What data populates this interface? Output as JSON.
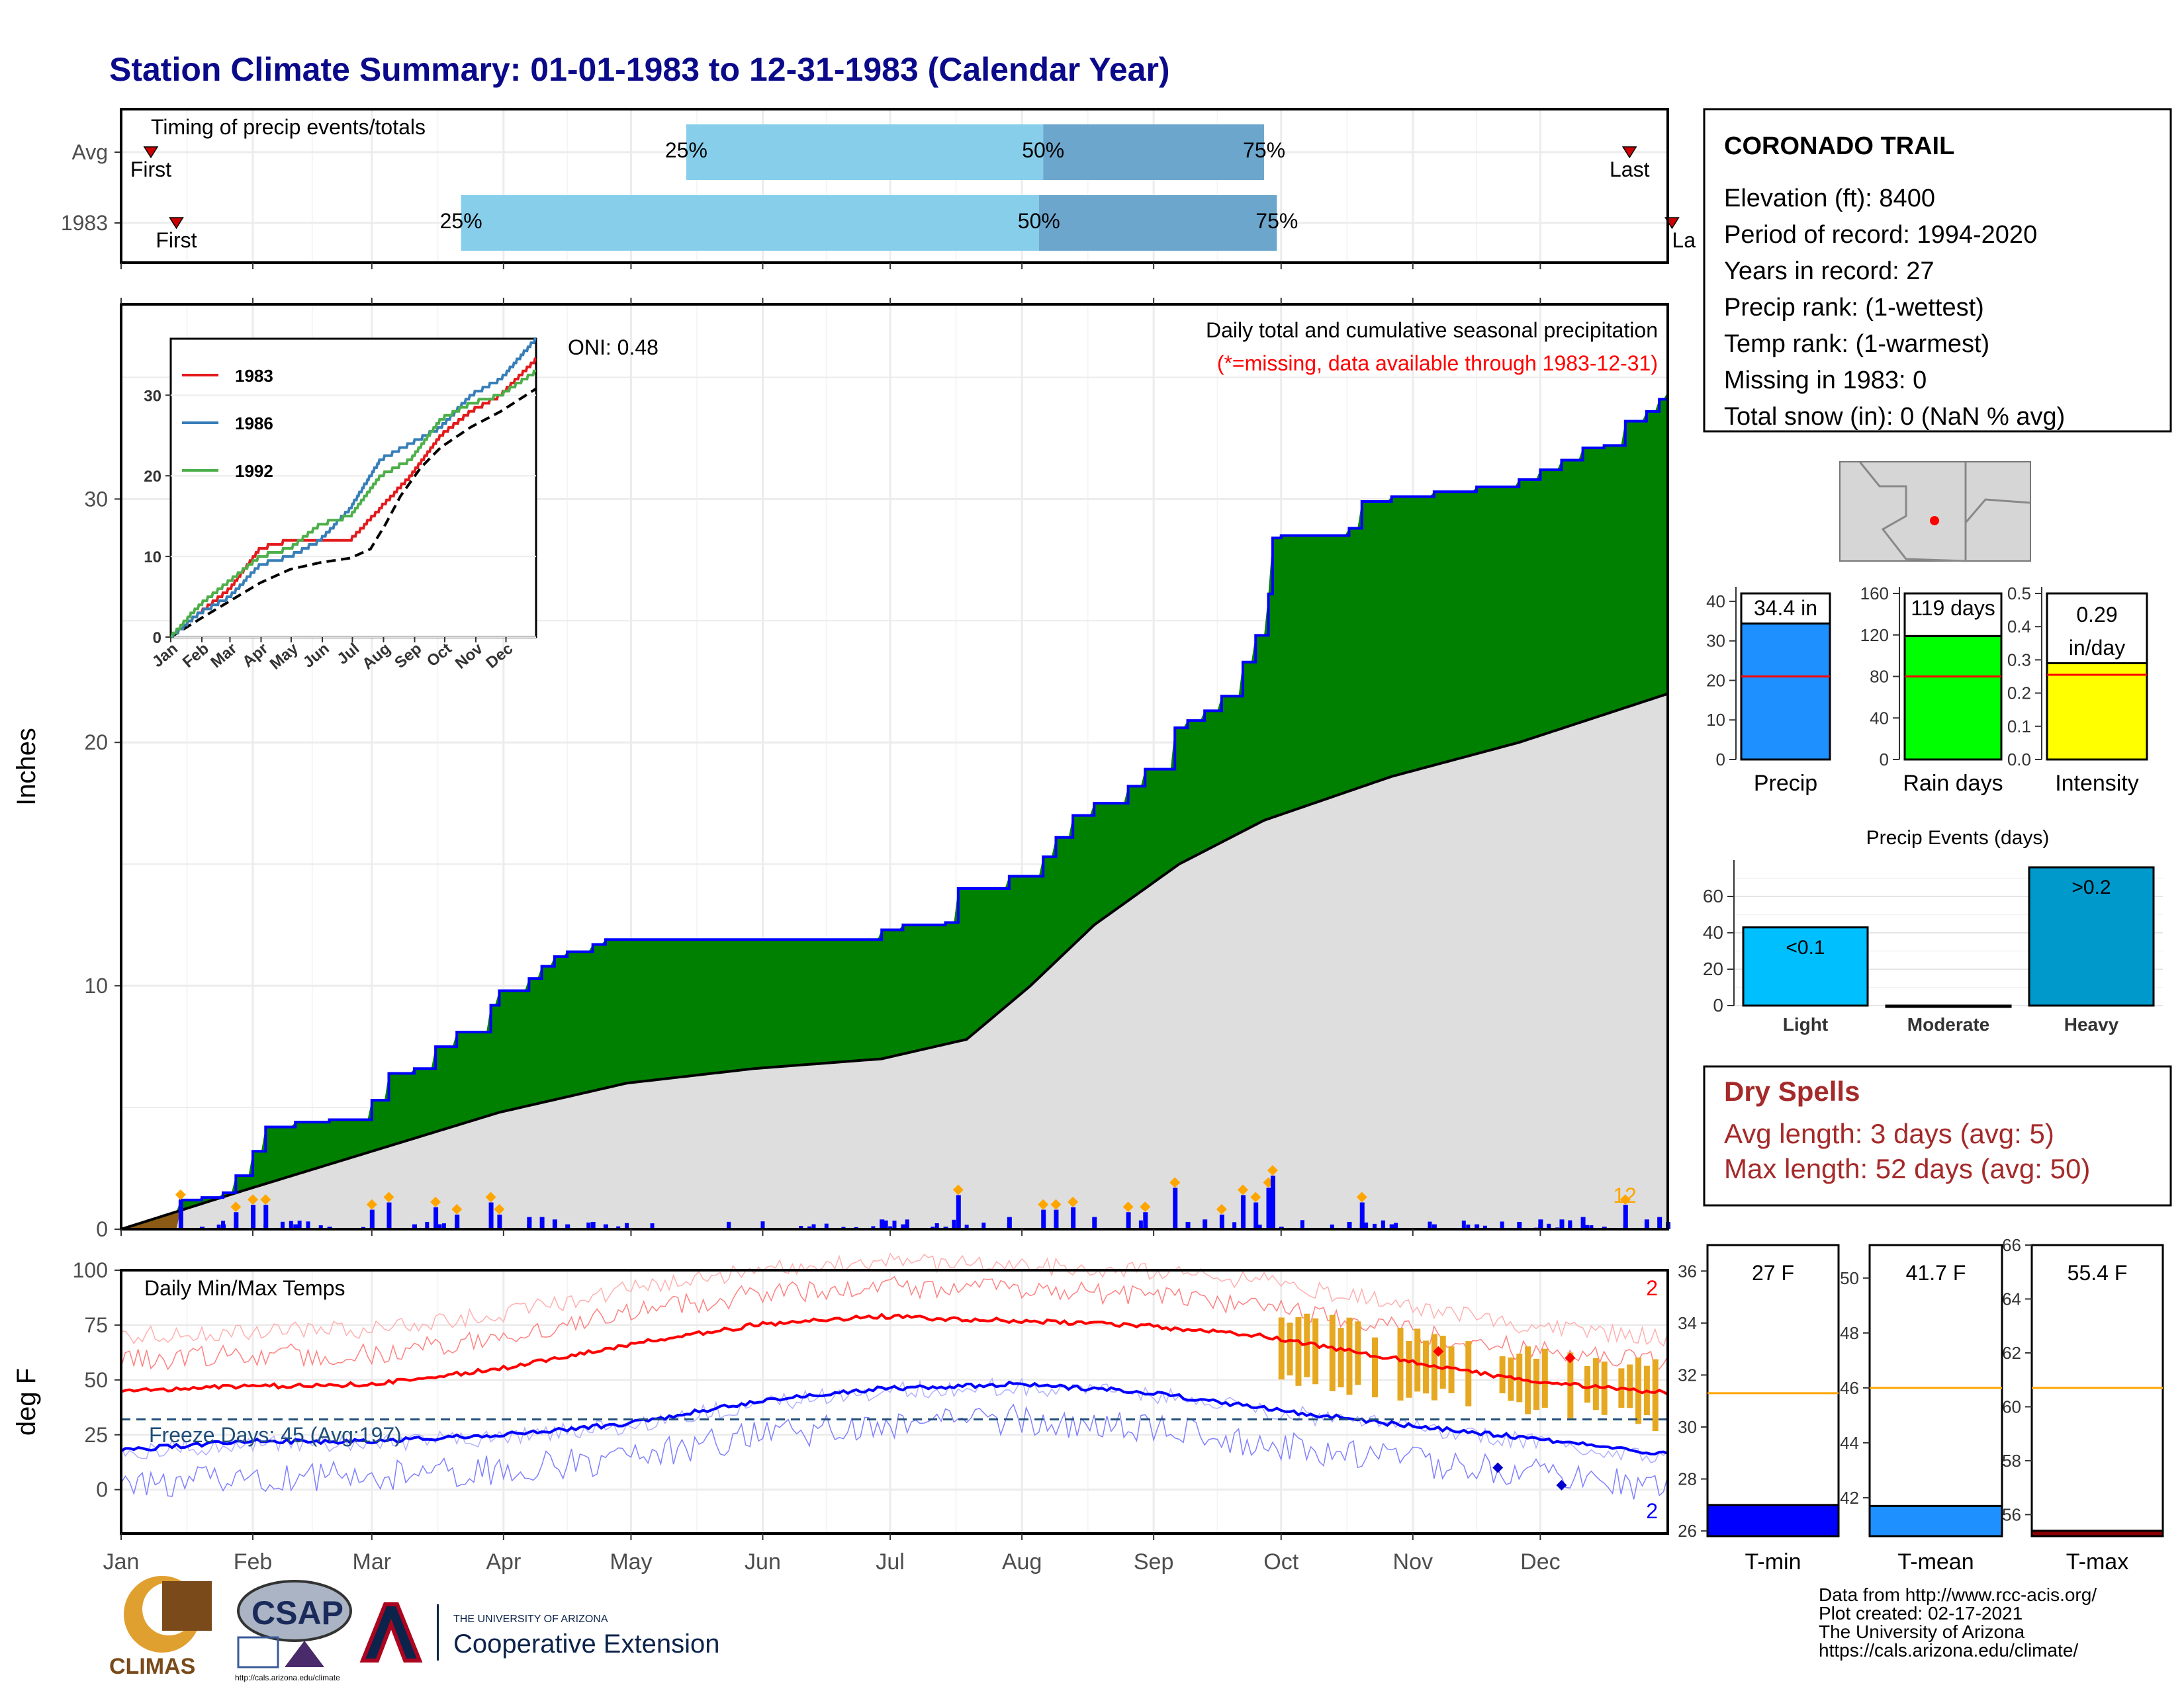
{
  "title": "Station Climate Summary: 01-01-1983 to 12-31-1983 (Calendar Year)",
  "months": [
    "Jan",
    "Feb",
    "Mar",
    "Apr",
    "May",
    "Jun",
    "Jul",
    "Aug",
    "Sep",
    "Oct",
    "Nov",
    "Dec"
  ],
  "timing": {
    "title": "Timing of precip events/totals",
    "rows": [
      {
        "label": "Avg",
        "first_day": 8,
        "last_day": 356,
        "p25_day": 134,
        "p50_day": 218,
        "p75_day": 270,
        "first_label": "First",
        "last_label": "Last"
      },
      {
        "label": "1983",
        "first_day": 14,
        "last_day": 366,
        "p25_day": 81,
        "p50_day": 217,
        "p75_day": 273,
        "first_label": "First",
        "last_label": "La"
      }
    ],
    "pct_labels": [
      "25%",
      "50%",
      "75%"
    ]
  },
  "precip": {
    "ylabel": "Inches",
    "oni": "ONI: 0.48",
    "legend_title": "Daily total and cumulative seasonal precipitation",
    "legend_note": "(*=missing, data available through 1983-12-31)",
    "missing_count": "12",
    "yticks": [
      "0",
      "10",
      "20",
      "30"
    ]
  },
  "inset": {
    "series": [
      {
        "name": "1983",
        "color": "#e31a1c"
      },
      {
        "name": "1986",
        "color": "#377eb8"
      },
      {
        "name": "1992",
        "color": "#4daf4a"
      }
    ],
    "yticks": [
      "0",
      "10",
      "20",
      "30"
    ]
  },
  "temps": {
    "title": "Daily Min/Max Temps",
    "ylabel": "deg F",
    "freeze": "Freeze Days: 45 (Avg:197)",
    "max_count": "2",
    "min_count": "2",
    "yticks": [
      "0",
      "25",
      "50",
      "75",
      "100"
    ]
  },
  "station": {
    "name": "CORONADO TRAIL",
    "lines": [
      "Elevation (ft): 8400",
      "Period of record: 1994-2020",
      "Years in record: 27",
      "Precip rank:  (1-wettest)",
      "Temp rank:  (1-warmest)",
      "Missing in 1983: 0",
      "Total snow (in): 0 (NaN % avg)"
    ]
  },
  "summary_bars": [
    {
      "name": "Precip",
      "value": 34.4,
      "label": "34.4 in",
      "avg": 21,
      "ymax": 42,
      "yticks": [
        0,
        10,
        20,
        30,
        40
      ],
      "color": "#1e90ff"
    },
    {
      "name": "Rain days",
      "value": 119,
      "label": "119 days",
      "avg": 80,
      "ymax": 160,
      "yticks": [
        0,
        40,
        80,
        120,
        160
      ],
      "color": "#00ff00"
    },
    {
      "name": "Intensity",
      "value": 0.29,
      "label": "0.29 in/day",
      "avg": 0.255,
      "ymax": 0.5,
      "yticks": [
        0.0,
        0.1,
        0.2,
        0.3,
        0.4,
        0.5
      ],
      "color": "#ffff00"
    }
  ],
  "events": {
    "title": "Precip Events (days)",
    "categories": [
      "Light",
      "Moderate",
      "Heavy"
    ],
    "values": [
      43,
      0,
      76
    ],
    "bar_labels": [
      "<0.1",
      "",
      ">0.2"
    ],
    "yticks": [
      0,
      20,
      40,
      60
    ]
  },
  "dry": {
    "title": "Dry Spells",
    "avg": "Avg length: 3 days (avg: 5)",
    "max": "Max length: 52 days (avg: 50)"
  },
  "temp_bars": [
    {
      "name": "T-min",
      "value": 27,
      "label": "27 F",
      "avg": 31.3,
      "ymin": 25.8,
      "ymax": 37,
      "yticks": [
        26,
        28,
        30,
        32,
        34,
        36
      ],
      "color": "#0000ff"
    },
    {
      "name": "T-mean",
      "value": 41.7,
      "label": "41.7 F",
      "avg": 46,
      "ymin": 40.6,
      "ymax": 51.2,
      "yticks": [
        42,
        44,
        46,
        48,
        50
      ],
      "color": "#1e90ff"
    },
    {
      "name": "T-max",
      "value": 55.4,
      "label": "55.4 F",
      "avg": 60.7,
      "ymin": 55.2,
      "ymax": 66,
      "yticks": [
        56,
        58,
        60,
        62,
        64,
        66
      ],
      "color": "#8b0000"
    }
  ],
  "credits": [
    "Data from http://www.rcc-acis.org/",
    "Plot created: 02-17-2021",
    "The University of Arizona",
    "https://cals.arizona.edu/climate/"
  ],
  "logos": {
    "climas": "CLIMAS",
    "csap": "CSAP",
    "csap_url": "http://cals.arizona.edu/climate",
    "ua_small": "THE UNIVERSITY OF ARIZONA",
    "ua_big": "Cooperative Extension"
  },
  "chart_data": {
    "type": "area",
    "title": "Daily total and cumulative seasonal precipitation",
    "ylabel": "Inches",
    "ylim": [
      0,
      38
    ],
    "x_unit": "day of year (1983)",
    "cumulative_1983": {
      "x": [
        1,
        15,
        20,
        25,
        28,
        32,
        35,
        42,
        50,
        55,
        60,
        64,
        70,
        72,
        75,
        80,
        88,
        90,
        92,
        97,
        100,
        103,
        106,
        112,
        115,
        120,
        125,
        130,
        135,
        175,
        180,
        185,
        195,
        198,
        202,
        210,
        218,
        221,
        225,
        230,
        238,
        242,
        249,
        252,
        256,
        260,
        265,
        268,
        271,
        272,
        274,
        282,
        290,
        293,
        300,
        310,
        320,
        330,
        335,
        340,
        345,
        350,
        355,
        360,
        363,
        365
      ],
      "y": [
        0,
        1.2,
        1.3,
        1.5,
        2.2,
        3.2,
        4.2,
        4.4,
        4.5,
        4.5,
        5.3,
        6.4,
        6.6,
        6.6,
        7.5,
        8.1,
        9.2,
        9.8,
        9.8,
        10.3,
        10.8,
        11.2,
        11.4,
        11.7,
        11.9,
        11.9,
        11.9,
        11.9,
        11.9,
        11.9,
        12.3,
        12.5,
        12.6,
        14,
        14,
        14.5,
        15.3,
        16.1,
        17,
        17.5,
        18.2,
        18.9,
        20.6,
        20.9,
        21.3,
        21.9,
        23.3,
        24.4,
        26.1,
        28.4,
        28.5,
        28.5,
        28.8,
        29.9,
        30.1,
        30.3,
        30.5,
        30.8,
        31.2,
        31.6,
        32.1,
        32.2,
        33.2,
        33.6,
        34.1,
        34.4
      ]
    },
    "cumulative_avg": {
      "x": [
        1,
        30,
        60,
        90,
        120,
        150,
        180,
        200,
        215,
        230,
        250,
        270,
        300,
        330,
        365
      ],
      "y": [
        0,
        1.6,
        3.2,
        4.8,
        6,
        6.6,
        7,
        7.8,
        10,
        12.5,
        15,
        16.8,
        18.6,
        20,
        22
      ]
    },
    "inset": {
      "type": "line",
      "x": [
        1,
        30,
        60,
        90,
        120,
        150,
        180,
        210,
        240,
        270,
        300,
        330,
        365
      ],
      "series": [
        {
          "name": "1983",
          "values": [
            0,
            3,
            6,
            11,
            12,
            12,
            12,
            16,
            20,
            25,
            28,
            30,
            34.4
          ]
        },
        {
          "name": "1986",
          "values": [
            0,
            3,
            5,
            9,
            10,
            12,
            16,
            22,
            24,
            26,
            30,
            32,
            37
          ]
        },
        {
          "name": "1992",
          "values": [
            0,
            4,
            7,
            10,
            11,
            14,
            15,
            20,
            22,
            27,
            29,
            30,
            33
          ]
        }
      ]
    },
    "temps": {
      "type": "line",
      "ylim": [
        -20,
        100
      ],
      "x": [
        1,
        30,
        60,
        90,
        120,
        150,
        180,
        210,
        240,
        270,
        300,
        330,
        365
      ],
      "tmax_smoothed": [
        45,
        47,
        48,
        55,
        66,
        75,
        79,
        77,
        75,
        70,
        60,
        50,
        44
      ],
      "tmin_smoothed": [
        18,
        22,
        22,
        25,
        30,
        40,
        46,
        48,
        45,
        37,
        30,
        24,
        16
      ],
      "freeze_line": 32
    }
  }
}
